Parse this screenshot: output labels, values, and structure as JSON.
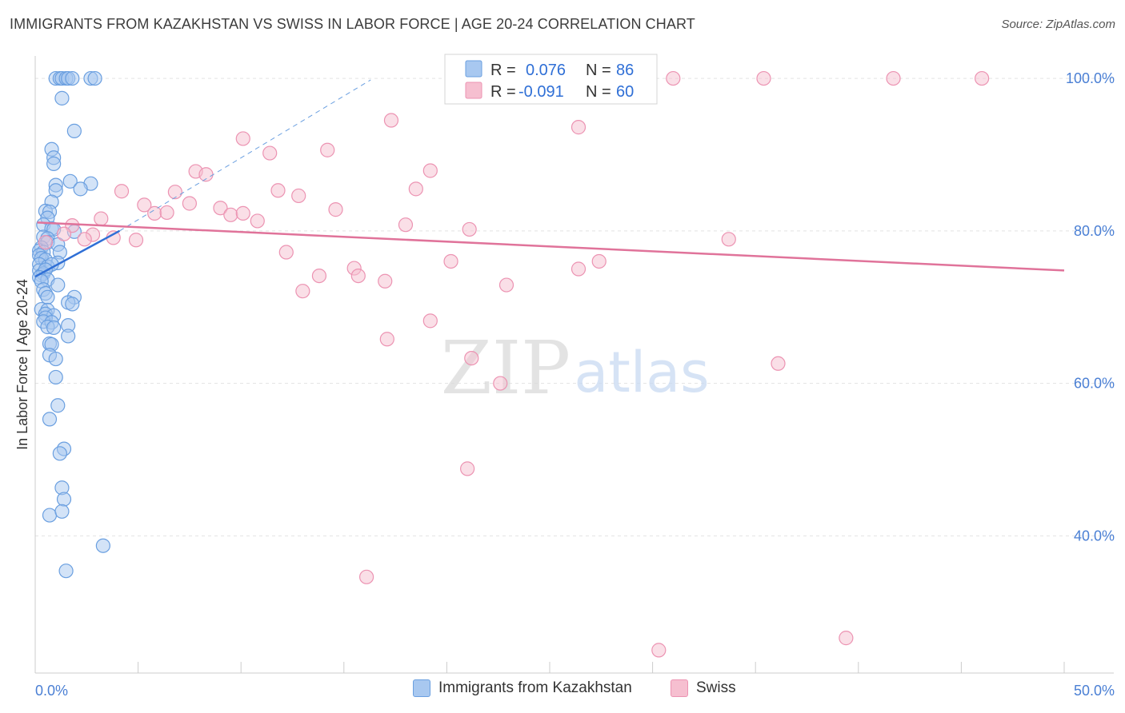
{
  "title": "IMMIGRANTS FROM KAZAKHSTAN VS SWISS IN LABOR FORCE | AGE 20-24 CORRELATION CHART",
  "source": "Source: ZipAtlas.com",
  "watermark": {
    "zip": "ZIP",
    "atlas": "atlas"
  },
  "colors": {
    "blue_fill": "#a8c8f0",
    "blue_stroke": "#6a9fe0",
    "blue_line": "#2f6fd6",
    "pink_fill": "#f6bfd0",
    "pink_stroke": "#ec93b2",
    "pink_line": "#e0739a",
    "value_text": "#2f6fd6",
    "grid": "#e3e3e3"
  },
  "legend": {
    "r_label": "R =",
    "n_label": "N =",
    "rows": [
      {
        "r": "0.076",
        "n": "86"
      },
      {
        "r": "-0.091",
        "n": "60"
      }
    ]
  },
  "bottom_legend": [
    "Immigrants from Kazakhstan",
    "Swiss"
  ],
  "chart_data": {
    "type": "scatter",
    "title": "IMMIGRANTS FROM KAZAKHSTAN VS SWISS IN LABOR FORCE | AGE 20-24 CORRELATION CHART",
    "xlabel": "",
    "ylabel": "In Labor Force | Age 20-24",
    "xlim": [
      0,
      50
    ],
    "ylim": [
      22,
      102
    ],
    "x_tick_labels": [
      "0.0%",
      "50.0%"
    ],
    "y_ticks": [
      40,
      60,
      80,
      100
    ],
    "y_tick_labels": [
      "40.0%",
      "60.0%",
      "80.0%",
      "100.0%"
    ],
    "grid": true,
    "legend_placement": "top-center",
    "series": [
      {
        "name": "Immigrants from Kazakhstan",
        "r": 0.076,
        "n": 86,
        "trend": {
          "x": [
            0,
            4.1
          ],
          "y": [
            74.0,
            80.0
          ]
        },
        "trend_extension": {
          "x": [
            4.1,
            16.3
          ],
          "y": [
            80.0,
            99.8
          ]
        },
        "points": [
          [
            1.0,
            100
          ],
          [
            1.2,
            100
          ],
          [
            1.3,
            100
          ],
          [
            1.5,
            100
          ],
          [
            1.6,
            100
          ],
          [
            1.8,
            100
          ],
          [
            2.7,
            100
          ],
          [
            2.9,
            100
          ],
          [
            1.3,
            97.4
          ],
          [
            1.9,
            93.1
          ],
          [
            0.8,
            90.7
          ],
          [
            0.9,
            89.6
          ],
          [
            0.9,
            88.8
          ],
          [
            1.7,
            86.5
          ],
          [
            2.7,
            86.2
          ],
          [
            1.0,
            86.0
          ],
          [
            1.0,
            85.3
          ],
          [
            2.2,
            85.5
          ],
          [
            0.8,
            83.8
          ],
          [
            0.5,
            82.6
          ],
          [
            0.7,
            82.5
          ],
          [
            0.6,
            81.7
          ],
          [
            0.4,
            80.8
          ],
          [
            0.8,
            80.3
          ],
          [
            0.9,
            80.2
          ],
          [
            1.9,
            79.9
          ],
          [
            0.4,
            79.2
          ],
          [
            0.6,
            79.0
          ],
          [
            0.6,
            78.5
          ],
          [
            1.1,
            78.2
          ],
          [
            0.3,
            77.8
          ],
          [
            0.2,
            77.4
          ],
          [
            0.4,
            77.2
          ],
          [
            1.2,
            77.2
          ],
          [
            0.2,
            76.8
          ],
          [
            0.3,
            76.4
          ],
          [
            0.5,
            76.2
          ],
          [
            1.1,
            75.8
          ],
          [
            0.2,
            75.6
          ],
          [
            0.6,
            75.3
          ],
          [
            0.8,
            75.6
          ],
          [
            0.2,
            74.8
          ],
          [
            0.3,
            74.2
          ],
          [
            0.4,
            74.4
          ],
          [
            0.5,
            74.9
          ],
          [
            0.2,
            73.9
          ],
          [
            0.6,
            73.6
          ],
          [
            0.3,
            73.4
          ],
          [
            1.1,
            72.9
          ],
          [
            0.4,
            72.3
          ],
          [
            0.5,
            71.8
          ],
          [
            0.6,
            71.3
          ],
          [
            1.9,
            71.3
          ],
          [
            1.6,
            70.6
          ],
          [
            1.8,
            70.4
          ],
          [
            0.3,
            69.7
          ],
          [
            0.6,
            69.6
          ],
          [
            0.5,
            69.1
          ],
          [
            0.9,
            68.9
          ],
          [
            0.5,
            68.6
          ],
          [
            0.4,
            68.1
          ],
          [
            0.8,
            68.0
          ],
          [
            1.6,
            67.6
          ],
          [
            0.6,
            67.4
          ],
          [
            0.9,
            67.3
          ],
          [
            1.6,
            66.2
          ],
          [
            0.7,
            65.2
          ],
          [
            0.8,
            65.1
          ],
          [
            0.7,
            63.7
          ],
          [
            1.0,
            63.2
          ],
          [
            1.0,
            60.8
          ],
          [
            1.1,
            57.1
          ],
          [
            0.7,
            55.3
          ],
          [
            1.4,
            51.4
          ],
          [
            1.2,
            50.8
          ],
          [
            1.3,
            46.3
          ],
          [
            1.4,
            44.8
          ],
          [
            0.7,
            42.7
          ],
          [
            1.3,
            43.2
          ],
          [
            3.3,
            38.7
          ],
          [
            1.5,
            35.4
          ]
        ]
      },
      {
        "name": "Swiss",
        "r": -0.091,
        "n": 60,
        "trend": {
          "x": [
            0.1,
            50
          ],
          "y": [
            81.1,
            74.8
          ]
        },
        "points": [
          [
            31.0,
            100
          ],
          [
            35.4,
            100
          ],
          [
            41.7,
            100
          ],
          [
            46.0,
            100
          ],
          [
            17.3,
            94.5
          ],
          [
            26.4,
            93.6
          ],
          [
            10.1,
            92.1
          ],
          [
            11.4,
            90.2
          ],
          [
            14.2,
            90.6
          ],
          [
            19.2,
            87.9
          ],
          [
            7.8,
            87.8
          ],
          [
            8.3,
            87.4
          ],
          [
            18.5,
            85.5
          ],
          [
            4.2,
            85.2
          ],
          [
            6.8,
            85.1
          ],
          [
            11.8,
            85.3
          ],
          [
            12.8,
            84.6
          ],
          [
            5.3,
            83.4
          ],
          [
            7.5,
            83.6
          ],
          [
            9.0,
            83.0
          ],
          [
            14.6,
            82.8
          ],
          [
            5.8,
            82.3
          ],
          [
            6.4,
            82.4
          ],
          [
            9.5,
            82.1
          ],
          [
            10.1,
            82.3
          ],
          [
            10.8,
            81.3
          ],
          [
            3.2,
            81.6
          ],
          [
            1.8,
            80.7
          ],
          [
            18.0,
            80.8
          ],
          [
            21.1,
            80.2
          ],
          [
            1.4,
            79.6
          ],
          [
            2.8,
            79.5
          ],
          [
            3.8,
            79.1
          ],
          [
            4.9,
            78.8
          ],
          [
            0.5,
            78.5
          ],
          [
            2.4,
            78.9
          ],
          [
            33.7,
            78.9
          ],
          [
            12.2,
            77.2
          ],
          [
            20.2,
            76.0
          ],
          [
            27.4,
            76.0
          ],
          [
            15.5,
            75.1
          ],
          [
            26.4,
            75.0
          ],
          [
            13.8,
            74.1
          ],
          [
            15.7,
            74.1
          ],
          [
            17.0,
            73.4
          ],
          [
            22.9,
            72.9
          ],
          [
            13.0,
            72.1
          ],
          [
            19.2,
            68.2
          ],
          [
            17.1,
            65.8
          ],
          [
            21.2,
            63.3
          ],
          [
            36.1,
            62.6
          ],
          [
            22.6,
            60.0
          ],
          [
            21.0,
            48.8
          ],
          [
            16.1,
            34.6
          ],
          [
            39.4,
            26.6
          ],
          [
            30.3,
            25.0
          ]
        ]
      }
    ]
  }
}
